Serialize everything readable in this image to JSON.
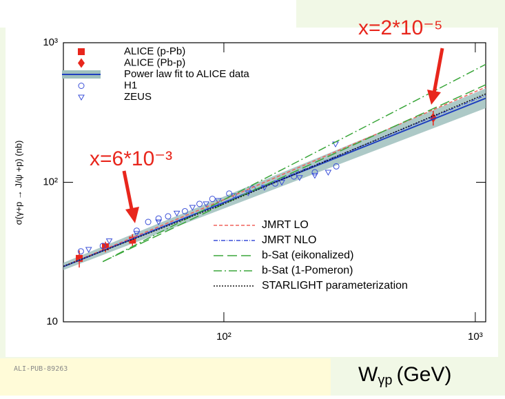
{
  "chart_data": {
    "type": "scatter-line",
    "xscale": "log",
    "yscale": "log",
    "xlim": [
      23,
      1100
    ],
    "ylim": [
      10,
      1000
    ],
    "xticks": [
      {
        "value": 100,
        "label": "10²"
      },
      {
        "value": 1000,
        "label": "10³"
      }
    ],
    "yticks": [
      10,
      {
        "value": 100,
        "label": "10²"
      },
      {
        "value": 1000,
        "label": "10³"
      }
    ],
    "ylabel": "σ(γ+p → J/ψ +p) (nb)",
    "xlabel": {
      "main": "W",
      "sub": "γp",
      "unit": "(GeV)"
    },
    "annotations": [
      {
        "text": "x=2*10⁻⁵",
        "color": "#e8261c"
      },
      {
        "text": "x=6*10⁻³",
        "color": "#e8261c"
      }
    ],
    "watermark": "ALI-PUB-89263",
    "series": [
      {
        "name": "ALICE (p-Pb)",
        "legend": "upper left",
        "marker": "square",
        "color": "#e8261c",
        "x": [
          26.6,
          33.8,
          43.3
        ],
        "values": [
          28.5,
          34.5,
          38.5
        ],
        "errors": [
          4,
          3,
          4
        ]
      },
      {
        "name": "ALICE (Pb-p)",
        "legend": "upper left",
        "marker": "diamond",
        "color": "#e8261c",
        "x": [
          680
        ],
        "values": [
          290
        ],
        "errors": [
          35
        ]
      },
      {
        "name": "Power law fit to ALICE data",
        "legend": "upper left",
        "marker": "line",
        "dash": "solid",
        "color": "#1f3fbf",
        "band_color": "#9fc0bd",
        "x": [
          23,
          1100
        ],
        "values": [
          24.9,
          400
        ],
        "band_lower": [
          23.5,
          340
        ],
        "band_upper": [
          26.5,
          470
        ]
      },
      {
        "name": "H1",
        "legend": "upper left",
        "marker": "circle",
        "color": "#3a4fd8",
        "x": [
          27,
          33,
          45,
          50,
          55,
          60,
          70,
          80,
          90,
          105,
          130,
          160,
          190,
          230,
          280
        ],
        "values": [
          32,
          35,
          45,
          52,
          55,
          57,
          62,
          70,
          76,
          83,
          90,
          98,
          110,
          118,
          130
        ]
      },
      {
        "name": "ZEUS",
        "legend": "upper left",
        "marker": "triangle-down",
        "color": "#3a4fd8",
        "x": [
          29,
          35,
          45,
          55,
          65,
          75,
          85,
          95,
          110,
          125,
          145,
          170,
          200,
          230,
          260,
          278
        ],
        "values": [
          33,
          38,
          43,
          52,
          60,
          66,
          70,
          74,
          80,
          84,
          92,
          100,
          108,
          112,
          118,
          188
        ]
      },
      {
        "name": "JMRT LO",
        "legend": "lower right",
        "marker": "line",
        "dash": "5,3",
        "color": "#f0605a",
        "x": [
          23,
          100,
          1100
        ],
        "values": [
          25,
          75,
          480
        ]
      },
      {
        "name": "JMRT NLO",
        "legend": "lower right",
        "marker": "line",
        "dash": "6,2,1,2",
        "color": "#3a4fd8",
        "x": [
          23,
          100,
          1100
        ],
        "values": [
          25,
          72,
          420
        ]
      },
      {
        "name": "b-Sat (eikonalized)",
        "legend": "lower right",
        "marker": "line",
        "dash": "14,6",
        "color": "#3aa63a",
        "x": [
          33,
          100,
          1100
        ],
        "values": [
          27,
          70,
          500
        ]
      },
      {
        "name": "b-Sat (1-Pomeron)",
        "legend": "lower right",
        "marker": "line",
        "dash": "12,4,2,4",
        "color": "#3aa63a",
        "x": [
          33,
          100,
          1100
        ],
        "values": [
          27,
          75,
          700
        ]
      },
      {
        "name": "STARLIGHT parameterization",
        "legend": "lower right",
        "marker": "line",
        "dash": "2,2",
        "color": "#111111",
        "x": [
          23,
          100,
          1100
        ],
        "values": [
          25,
          70,
          430
        ]
      }
    ]
  }
}
